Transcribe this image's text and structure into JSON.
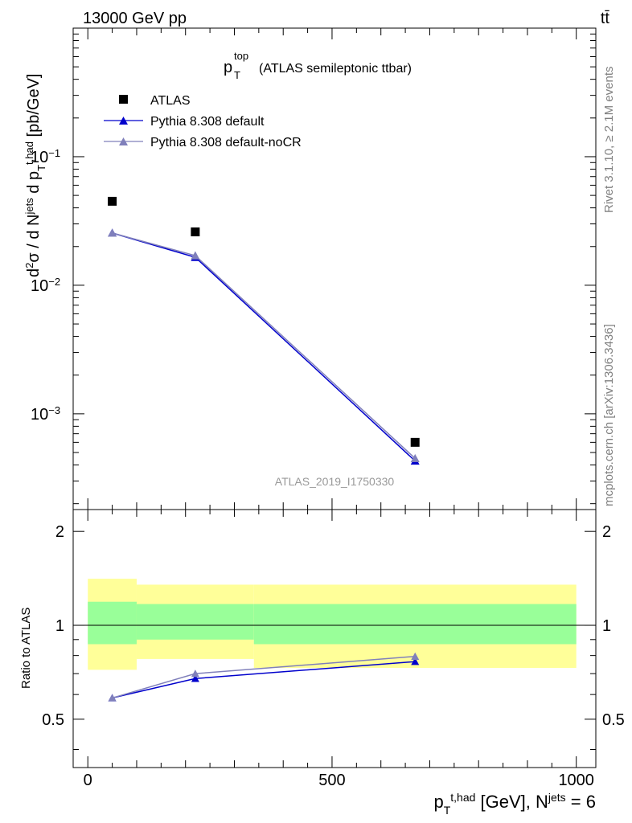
{
  "header": {
    "energy_label": "13000 GeV pp",
    "process_label": "tt̄"
  },
  "side_labels": {
    "rivet": "Rivet 3.1.10, ≥ 2.1M events",
    "mcplots": "mcplots.cern.ch [arXiv:1306.3436]"
  },
  "main_plot": {
    "title_main": "p",
    "title_sub": "T",
    "title_sup": "top",
    "title_rest": "(ATLAS semileptonic ttbar)",
    "watermark": "ATLAS_2019_I1750330",
    "ylabel": "d²σ / d N^jets d p_T^t,had [pb/GeV]",
    "y_ticks": [
      {
        "base": "10",
        "exp": "−1",
        "value": 0.1
      },
      {
        "base": "10",
        "exp": "−2",
        "value": 0.01
      },
      {
        "base": "10",
        "exp": "−3",
        "value": 0.001
      }
    ]
  },
  "ratio_plot": {
    "ylabel": "Ratio to ATLAS",
    "y_ticks_left": [
      "0.5",
      "1",
      "2"
    ],
    "y_ticks_right": [
      "0.5",
      "1",
      "2"
    ],
    "y_tick_values": [
      0.5,
      1,
      2
    ]
  },
  "xaxis": {
    "tick_labels": [
      "0",
      "500",
      "1000"
    ],
    "tick_values": [
      0,
      500,
      1000
    ],
    "label_p": "p",
    "label_p_sub": "T",
    "label_p_sup": "t,had",
    "label_mid": " [GeV], N",
    "label_n_sup": "jets",
    "label_end": " = 6"
  },
  "legend": [
    {
      "name": "ATLAS",
      "marker": "square",
      "color": "#000000"
    },
    {
      "name": "Pythia 8.308 default",
      "marker": "triangle",
      "color": "#0000cc"
    },
    {
      "name": "Pythia 8.308 default-noCR",
      "marker": "triangle",
      "color": "#8080bb"
    }
  ],
  "colors": {
    "band_outer": "#ffff99",
    "band_inner": "#99ff99",
    "default": "#0000cc",
    "nocr": "#8080bb"
  },
  "chart_data": [
    {
      "type": "scatter",
      "title": "p_T^top (ATLAS semileptonic ttbar)",
      "xlabel": "p_T^t,had [GeV], N^jets = 6",
      "ylabel": "d²σ / d N^jets d p_T^t,had [pb/GeV]",
      "xlim": [
        -30,
        1040
      ],
      "ylim": [
        0.00018,
        1.0
      ],
      "y_scale": "log",
      "legend_position": "top-left",
      "series": [
        {
          "name": "ATLAS",
          "x": [
            50,
            220,
            670
          ],
          "y": [
            0.045,
            0.026,
            0.0006
          ]
        },
        {
          "name": "Pythia 8.308 default",
          "x": [
            50,
            220,
            670
          ],
          "y": [
            0.0255,
            0.0165,
            0.00043
          ]
        },
        {
          "name": "Pythia 8.308 default-noCR",
          "x": [
            50,
            220,
            670
          ],
          "y": [
            0.0255,
            0.017,
            0.00045
          ]
        }
      ]
    },
    {
      "type": "line",
      "ylabel": "Ratio to ATLAS",
      "xlim": [
        -30,
        1040
      ],
      "ylim": [
        0.35,
        2.35
      ],
      "y_scale": "log",
      "reference_line": 1,
      "bands": {
        "edges": [
          0,
          100,
          340,
          1000
        ],
        "outer_low": [
          0.72,
          0.78,
          0.73
        ],
        "outer_high": [
          1.41,
          1.35,
          1.35
        ],
        "inner_low": [
          0.87,
          0.9,
          0.87
        ],
        "inner_high": [
          1.19,
          1.17,
          1.17
        ]
      },
      "series": [
        {
          "name": "Pythia 8.308 default",
          "x": [
            50,
            220,
            670
          ],
          "y": [
            0.585,
            0.675,
            0.765
          ]
        },
        {
          "name": "Pythia 8.308 default-noCR",
          "x": [
            50,
            220,
            670
          ],
          "y": [
            0.585,
            0.7,
            0.795
          ]
        }
      ]
    }
  ]
}
